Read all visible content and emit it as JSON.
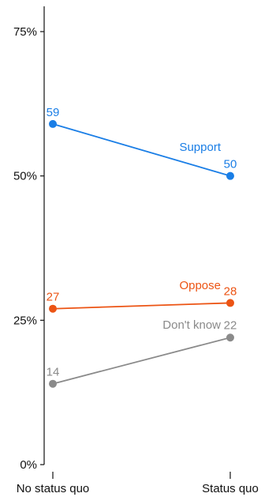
{
  "chart_data": {
    "type": "line",
    "categories": [
      "No status quo",
      "Status quo"
    ],
    "y_tick_labels": [
      "0%",
      "25%",
      "50%",
      "75%"
    ],
    "y_ticks": [
      0,
      25,
      50,
      75
    ],
    "ylim": [
      0,
      80
    ],
    "grid": false,
    "series": [
      {
        "name": "Support",
        "values": [
          59,
          50
        ],
        "value_labels": [
          "59",
          "50"
        ],
        "color": "#1a7ee6"
      },
      {
        "name": "Oppose",
        "values": [
          27,
          28
        ],
        "value_labels": [
          "27",
          "28"
        ],
        "color": "#ec5414"
      },
      {
        "name": "Don't know",
        "values": [
          14,
          22
        ],
        "value_labels": [
          "14",
          "22"
        ],
        "color": "#8a8a8a"
      }
    ]
  }
}
